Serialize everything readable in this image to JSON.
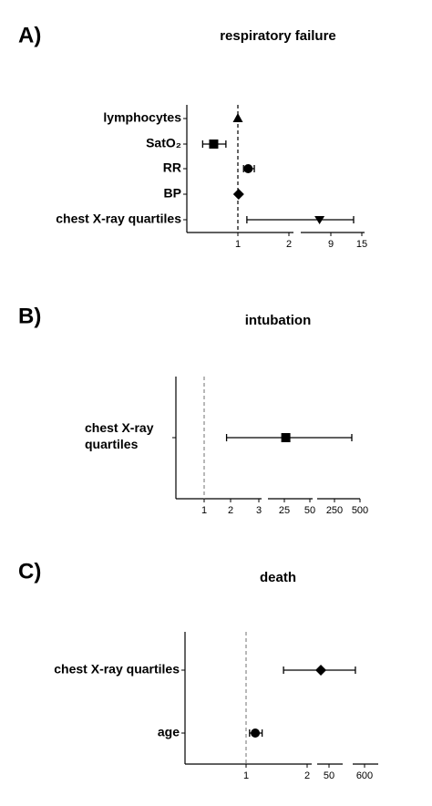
{
  "chart_data": [
    {
      "type": "forest",
      "panel": "A)",
      "title": "respiratory failure",
      "categories": [
        "lymphocytes",
        "SatO₂",
        "RR",
        "BP",
        "chest X-ray quartiles"
      ],
      "values": [
        1.0,
        0.72,
        1.15,
        1.01,
        6
      ],
      "ci_low": [
        null,
        0.62,
        1.08,
        null,
        1.13
      ],
      "ci_high": [
        null,
        0.85,
        1.25,
        null,
        13.1
      ],
      "markers": [
        "triangle",
        "square",
        "circle",
        "diamond",
        "triangle-down"
      ],
      "xlim": [
        0.5,
        15
      ],
      "xticks": [
        1,
        2,
        9,
        15
      ],
      "log": true,
      "reference": 1,
      "color": "#000000"
    },
    {
      "type": "forest",
      "panel": "B)",
      "title": "intubation",
      "categories": [
        "chest X-ray quartiles"
      ],
      "values": [
        26
      ],
      "ci_low": [
        1.8
      ],
      "ci_high": [
        400
      ],
      "markers": [
        "square"
      ],
      "xlim": [
        0.5,
        500
      ],
      "xticks": [
        1,
        2,
        3,
        25,
        50,
        250,
        500
      ],
      "log": true,
      "reference": 1,
      "color": "#000000"
    },
    {
      "type": "forest",
      "panel": "C)",
      "title": "death",
      "categories": [
        "chest X-ray quartiles",
        "age"
      ],
      "values": [
        15,
        1.11
      ],
      "ci_low": [
        1.53,
        1.04
      ],
      "ci_high": [
        316,
        1.2
      ],
      "markers": [
        "diamond",
        "circle"
      ],
      "xlim": [
        0.5,
        1500
      ],
      "xticks": [
        1,
        2,
        50,
        600
      ],
      "log": true,
      "reference": 1,
      "color": "#000000"
    }
  ]
}
